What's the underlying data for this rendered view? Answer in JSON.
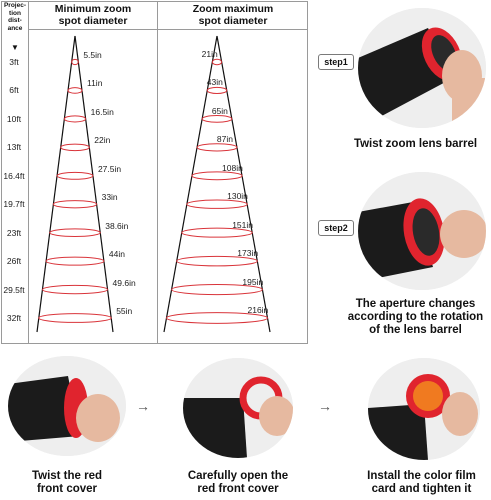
{
  "table": {
    "distance_header": [
      "Projec-",
      "tion",
      "dist-",
      "ance"
    ],
    "down_arrow": "▼",
    "min_header": [
      "Minimum zoom",
      "spot diameter"
    ],
    "max_header": [
      "Zoom maximum",
      "spot diameter"
    ],
    "rows": [
      {
        "distance": "3ft",
        "min": "5.5in",
        "max": "21in"
      },
      {
        "distance": "6ft",
        "min": "11in",
        "max": "43in"
      },
      {
        "distance": "10ft",
        "min": "16.5in",
        "max": "65in"
      },
      {
        "distance": "13ft",
        "min": "22in",
        "max": "87in"
      },
      {
        "distance": "16.4ft",
        "min": "27.5in",
        "max": "108in"
      },
      {
        "distance": "19.7ft",
        "min": "33in",
        "max": "130in"
      },
      {
        "distance": "23ft",
        "min": "38.6in",
        "max": "151in"
      },
      {
        "distance": "26ft",
        "min": "44in",
        "max": "173in"
      },
      {
        "distance": "29.5ft",
        "min": "49.6in",
        "max": "195in"
      },
      {
        "distance": "32ft",
        "min": "55in",
        "max": "216in"
      }
    ],
    "ellipse_color": "#d9343a"
  },
  "steps": {
    "step1": {
      "tag": "step1",
      "caption": "Twist zoom lens barrel"
    },
    "step2": {
      "tag": "step2",
      "caption": [
        "The aperture changes",
        "according to the rotation",
        "of the lens barrel"
      ]
    }
  },
  "bottom": [
    {
      "caption": [
        "Twist the red",
        "front cover"
      ]
    },
    {
      "caption": [
        "Carefully open the",
        "red front cover"
      ]
    },
    {
      "caption": [
        "Install the color film",
        "card and tighten it"
      ]
    }
  ],
  "arrow_glyph": "→",
  "colors": {
    "accent_red": "#e0242e",
    "body_black": "#1b1b1b"
  }
}
